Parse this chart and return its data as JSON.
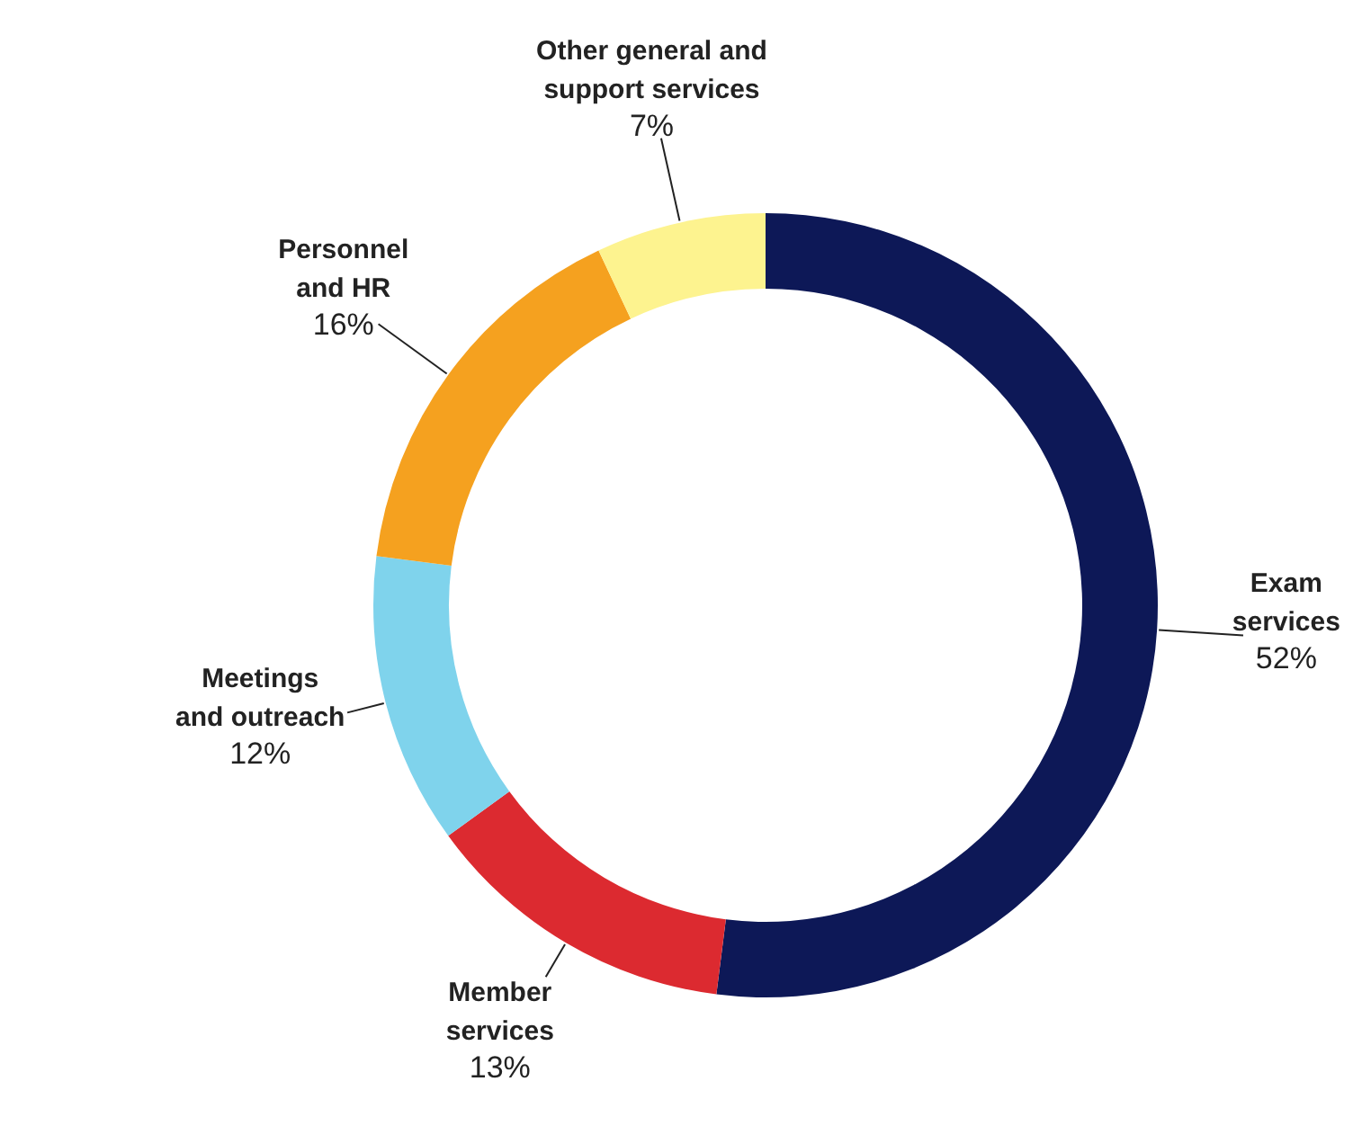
{
  "chart_data": {
    "type": "donut",
    "categories": [
      "Exam services",
      "Member services",
      "Meetings and outreach",
      "Personnel and HR",
      "Other general and support services"
    ],
    "values": [
      52,
      13,
      12,
      16,
      7
    ],
    "colors": [
      "#0d1857",
      "#dc2a30",
      "#7fd3ec",
      "#f5a11f",
      "#fdf38f"
    ],
    "value_labels": [
      "52%",
      "13%",
      "12%",
      "16%",
      "7%"
    ]
  }
}
